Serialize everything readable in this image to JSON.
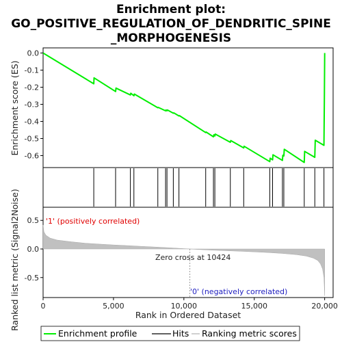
{
  "chart_data": {
    "type": "line",
    "title": [
      "Enrichment plot:",
      "GO_POSITIVE_REGULATION_OF_DENDRITIC_SPINE",
      "_MORPHOGENESIS"
    ],
    "es_panel": {
      "ylabel": "Enrichment score (ES)",
      "ylim": [
        -0.67,
        0.03
      ],
      "yticks": [
        "0.0",
        "-0.1",
        "-0.2",
        "-0.3",
        "-0.4",
        "-0.5",
        "-0.6"
      ],
      "ytick_values": [
        0.0,
        -0.1,
        -0.2,
        -0.3,
        -0.4,
        -0.5,
        -0.6
      ],
      "series_color": "#00ee00",
      "points": [
        [
          0,
          0.0
        ],
        [
          3600,
          -0.18
        ],
        [
          3620,
          -0.145
        ],
        [
          5150,
          -0.225
        ],
        [
          5180,
          -0.205
        ],
        [
          6200,
          -0.245
        ],
        [
          6230,
          -0.235
        ],
        [
          6450,
          -0.25
        ],
        [
          6480,
          -0.24
        ],
        [
          8150,
          -0.32
        ],
        [
          8180,
          -0.318
        ],
        [
          8700,
          -0.338
        ],
        [
          8730,
          -0.333
        ],
        [
          8800,
          -0.338
        ],
        [
          8830,
          -0.333
        ],
        [
          9250,
          -0.352
        ],
        [
          9280,
          -0.35
        ],
        [
          9650,
          -0.368
        ],
        [
          9680,
          -0.366
        ],
        [
          11550,
          -0.465
        ],
        [
          11580,
          -0.462
        ],
        [
          12100,
          -0.49
        ],
        [
          12130,
          -0.478
        ],
        [
          12200,
          -0.485
        ],
        [
          12230,
          -0.474
        ],
        [
          13300,
          -0.522
        ],
        [
          13330,
          -0.512
        ],
        [
          14250,
          -0.555
        ],
        [
          14280,
          -0.545
        ],
        [
          16100,
          -0.635
        ],
        [
          16130,
          -0.615
        ],
        [
          16300,
          -0.625
        ],
        [
          16330,
          -0.595
        ],
        [
          17000,
          -0.628
        ],
        [
          17030,
          -0.598
        ],
        [
          17100,
          -0.602
        ],
        [
          17130,
          -0.563
        ],
        [
          18550,
          -0.64
        ],
        [
          18580,
          -0.575
        ],
        [
          19300,
          -0.61
        ],
        [
          19330,
          -0.51
        ],
        [
          19950,
          -0.54
        ],
        [
          19980,
          -0.28
        ],
        [
          20000,
          0.0
        ]
      ]
    },
    "hits": [
      3600,
      5150,
      6200,
      6450,
      8150,
      8700,
      8800,
      9250,
      9650,
      11550,
      12100,
      12200,
      13300,
      14250,
      16100,
      16300,
      17000,
      17100,
      18550,
      19300,
      19950
    ],
    "colorbar": {
      "segments": [
        [
          "#e60000",
          0,
          500
        ],
        [
          "#f03c4a",
          500,
          3600
        ],
        [
          "#f4707c",
          3600,
          5200
        ],
        [
          "#f896a0",
          5200,
          6800
        ],
        [
          "#fab8c4",
          6800,
          7500
        ],
        [
          "#f7c6e6",
          7500,
          10424
        ],
        [
          "#d8d8f8",
          10424,
          13500
        ],
        [
          "#b8b8f0",
          13500,
          15700
        ],
        [
          "#8a86ec",
          15700,
          17000
        ],
        [
          "#6a5ee6",
          17000,
          19400
        ],
        [
          "#2a1adf",
          19400,
          19800
        ],
        [
          "#1a00c8",
          19800,
          20000
        ]
      ]
    },
    "metric_panel": {
      "ylabel": "Ranked list metric (Signal2Noise)",
      "ylim": [
        -0.85,
        0.73
      ],
      "yticks": [
        "0.5",
        "0.0",
        "-0.5"
      ],
      "ytick_values": [
        0.5,
        0.0,
        -0.5
      ],
      "profile": [
        [
          0,
          0.42
        ],
        [
          60,
          0.3
        ],
        [
          200,
          0.24
        ],
        [
          500,
          0.19
        ],
        [
          1000,
          0.155
        ],
        [
          2000,
          0.125
        ],
        [
          3000,
          0.1
        ],
        [
          4000,
          0.085
        ],
        [
          5000,
          0.07
        ],
        [
          6000,
          0.058
        ],
        [
          7000,
          0.045
        ],
        [
          8000,
          0.033
        ],
        [
          9000,
          0.02
        ],
        [
          10000,
          0.006
        ],
        [
          10424,
          0.0
        ],
        [
          11000,
          -0.008
        ],
        [
          12000,
          -0.02
        ],
        [
          13000,
          -0.03
        ],
        [
          14000,
          -0.04
        ],
        [
          15000,
          -0.05
        ],
        [
          16000,
          -0.062
        ],
        [
          17000,
          -0.078
        ],
        [
          18000,
          -0.1
        ],
        [
          18700,
          -0.125
        ],
        [
          19200,
          -0.16
        ],
        [
          19500,
          -0.2
        ],
        [
          19700,
          -0.26
        ],
        [
          19850,
          -0.35
        ],
        [
          19950,
          -0.5
        ],
        [
          20000,
          -0.82
        ]
      ],
      "pos_label": "'1' (positively correlated)",
      "neg_label": "'0' (negatively correlated)",
      "zero_cross_label": "Zero cross at 10424",
      "zero_cross": 10424
    },
    "xlabel": "Rank in Ordered Dataset",
    "xlim": [
      0,
      20600
    ],
    "xticks": [
      "0",
      "5,000",
      "10,000",
      "15,000",
      "20,000"
    ],
    "xtick_values": [
      0,
      5000,
      10000,
      15000,
      20000
    ],
    "legend": {
      "placement": "bottom",
      "items": [
        {
          "label": "Enrichment profile",
          "color": "#00ee00"
        },
        {
          "label": "Hits",
          "color": "#000000"
        },
        {
          "label": "Ranking metric scores",
          "color": "#c0c0c0"
        }
      ]
    }
  }
}
